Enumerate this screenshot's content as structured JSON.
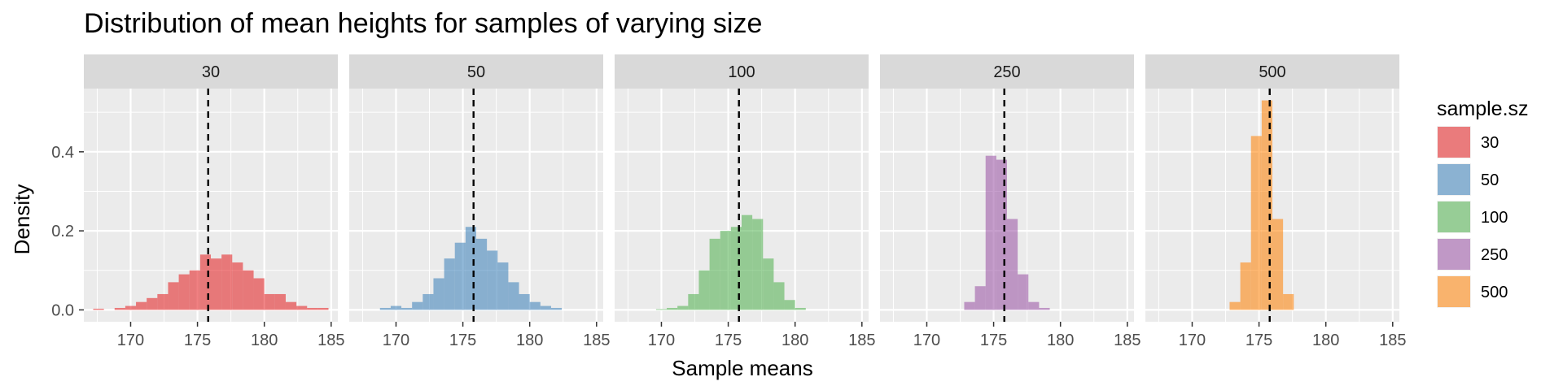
{
  "chart_data": {
    "type": "histogram",
    "title": "Distribution of mean heights for samples of varying size",
    "xlabel": "Sample means",
    "ylabel": "Density",
    "xlim": [
      166.5,
      185.5
    ],
    "ylim": [
      -0.03,
      0.56
    ],
    "x_ticks": [
      170,
      175,
      180,
      185
    ],
    "y_ticks": [
      0.0,
      0.2,
      0.4
    ],
    "y_tick_labels": [
      "0.0",
      "0.2",
      "0.4"
    ],
    "reference_line_x": 175.8,
    "bin_width": 0.8,
    "legend": {
      "title": "sample.sz",
      "position": "right"
    },
    "series": [
      {
        "name": "30",
        "color": "#E41A1C",
        "bins": [
          {
            "x": 167.6,
            "y": 0.003
          },
          {
            "x": 168.4,
            "y": 0.0
          },
          {
            "x": 169.2,
            "y": 0.005
          },
          {
            "x": 170.0,
            "y": 0.01
          },
          {
            "x": 170.8,
            "y": 0.02
          },
          {
            "x": 171.6,
            "y": 0.03
          },
          {
            "x": 172.4,
            "y": 0.04
          },
          {
            "x": 173.2,
            "y": 0.07
          },
          {
            "x": 174.0,
            "y": 0.09
          },
          {
            "x": 174.8,
            "y": 0.1
          },
          {
            "x": 175.6,
            "y": 0.14
          },
          {
            "x": 176.4,
            "y": 0.13
          },
          {
            "x": 177.2,
            "y": 0.14
          },
          {
            "x": 178.0,
            "y": 0.12
          },
          {
            "x": 178.8,
            "y": 0.1
          },
          {
            "x": 179.6,
            "y": 0.08
          },
          {
            "x": 180.4,
            "y": 0.04
          },
          {
            "x": 181.2,
            "y": 0.04
          },
          {
            "x": 182.0,
            "y": 0.02
          },
          {
            "x": 182.8,
            "y": 0.01
          },
          {
            "x": 183.6,
            "y": 0.005
          },
          {
            "x": 184.4,
            "y": 0.005
          }
        ]
      },
      {
        "name": "50",
        "color": "#377EB8",
        "bins": [
          {
            "x": 169.2,
            "y": 0.005
          },
          {
            "x": 170.0,
            "y": 0.01
          },
          {
            "x": 170.8,
            "y": 0.005
          },
          {
            "x": 171.6,
            "y": 0.02
          },
          {
            "x": 172.4,
            "y": 0.04
          },
          {
            "x": 173.2,
            "y": 0.08
          },
          {
            "x": 174.0,
            "y": 0.13
          },
          {
            "x": 174.8,
            "y": 0.17
          },
          {
            "x": 175.6,
            "y": 0.21
          },
          {
            "x": 176.4,
            "y": 0.18
          },
          {
            "x": 177.2,
            "y": 0.15
          },
          {
            "x": 178.0,
            "y": 0.12
          },
          {
            "x": 178.8,
            "y": 0.07
          },
          {
            "x": 179.6,
            "y": 0.04
          },
          {
            "x": 180.4,
            "y": 0.02
          },
          {
            "x": 181.2,
            "y": 0.01
          },
          {
            "x": 182.0,
            "y": 0.005
          }
        ]
      },
      {
        "name": "100",
        "color": "#4DAF4A",
        "bins": [
          {
            "x": 170.0,
            "y": 0.002
          },
          {
            "x": 170.8,
            "y": 0.005
          },
          {
            "x": 171.6,
            "y": 0.01
          },
          {
            "x": 172.4,
            "y": 0.04
          },
          {
            "x": 173.2,
            "y": 0.1
          },
          {
            "x": 174.0,
            "y": 0.18
          },
          {
            "x": 174.8,
            "y": 0.2
          },
          {
            "x": 175.6,
            "y": 0.21
          },
          {
            "x": 176.4,
            "y": 0.24
          },
          {
            "x": 177.2,
            "y": 0.23
          },
          {
            "x": 178.0,
            "y": 0.13
          },
          {
            "x": 178.8,
            "y": 0.07
          },
          {
            "x": 179.6,
            "y": 0.025
          },
          {
            "x": 180.4,
            "y": 0.005
          }
        ]
      },
      {
        "name": "250",
        "color": "#984EA3",
        "bins": [
          {
            "x": 173.2,
            "y": 0.02
          },
          {
            "x": 174.0,
            "y": 0.06
          },
          {
            "x": 174.8,
            "y": 0.39
          },
          {
            "x": 175.6,
            "y": 0.38
          },
          {
            "x": 176.4,
            "y": 0.23
          },
          {
            "x": 177.2,
            "y": 0.09
          },
          {
            "x": 178.0,
            "y": 0.02
          },
          {
            "x": 178.8,
            "y": 0.005
          }
        ]
      },
      {
        "name": "500",
        "color": "#FF7F00",
        "bins": [
          {
            "x": 173.2,
            "y": 0.02
          },
          {
            "x": 174.0,
            "y": 0.12
          },
          {
            "x": 174.8,
            "y": 0.44
          },
          {
            "x": 175.6,
            "y": 0.53
          },
          {
            "x": 176.4,
            "y": 0.23
          },
          {
            "x": 177.2,
            "y": 0.04
          }
        ]
      }
    ]
  }
}
